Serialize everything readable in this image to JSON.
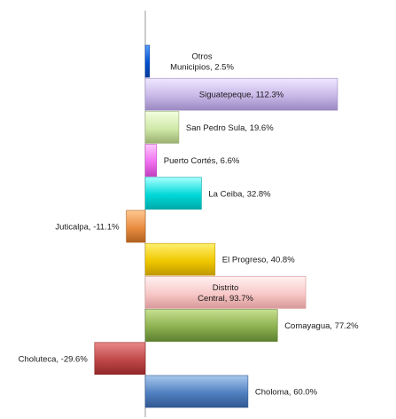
{
  "chart_data": {
    "type": "bar",
    "orientation": "horizontal",
    "title": "",
    "xlabel": "",
    "ylabel": "",
    "grid": false,
    "categories": [
      "Otros Municipios",
      "Siguatepeque",
      "San Pedro Sula",
      "Puerto Cortés",
      "La Ceiba",
      "Juticalpa",
      "El Progreso",
      "Distrito Central",
      "Comayagua",
      "Choluteca",
      "Choloma"
    ],
    "values": [
      2.5,
      112.3,
      19.6,
      6.6,
      32.8,
      -11.1,
      40.8,
      93.7,
      77.2,
      -29.6,
      60.0
    ],
    "labels": [
      [
        "Otros",
        "Municipios, 2.5%"
      ],
      [
        "Siguatepeque, 112.3%"
      ],
      [
        "San Pedro Sula, 19.6%"
      ],
      [
        "Puerto Cortés, 6.6%"
      ],
      [
        "La Ceiba, 32.8%"
      ],
      [
        "Juticalpa, -11.1%"
      ],
      [
        "El Progreso, 40.8%"
      ],
      [
        "Distrito",
        "Central, 93.7%"
      ],
      [
        "Comayagua, 77.2%"
      ],
      [
        "Choluteca, -29.6%"
      ],
      [
        "Choloma, 60.0%"
      ]
    ],
    "colors": [
      [
        "#5aa0ff",
        "#0050d0",
        "#003a9a"
      ],
      [
        "#efe8ff",
        "#c8b8e8",
        "#9a88c0"
      ],
      [
        "#f4ffe0",
        "#d0e8a8",
        "#9ab070"
      ],
      [
        "#ffc8ff",
        "#f070f0",
        "#c040c0"
      ],
      [
        "#a8ffff",
        "#00d8d8",
        "#00a8a8"
      ],
      [
        "#ffc890",
        "#e88c40",
        "#b06020"
      ],
      [
        "#fff070",
        "#f0c800",
        "#c09800"
      ],
      [
        "#fff0f0",
        "#f8c8c8",
        "#d89898"
      ],
      [
        "#c8e090",
        "#8cb050",
        "#5c8030"
      ],
      [
        "#e88888",
        "#c04848",
        "#902828"
      ],
      [
        "#a8c8ec",
        "#5080c0",
        "#305890"
      ]
    ]
  }
}
